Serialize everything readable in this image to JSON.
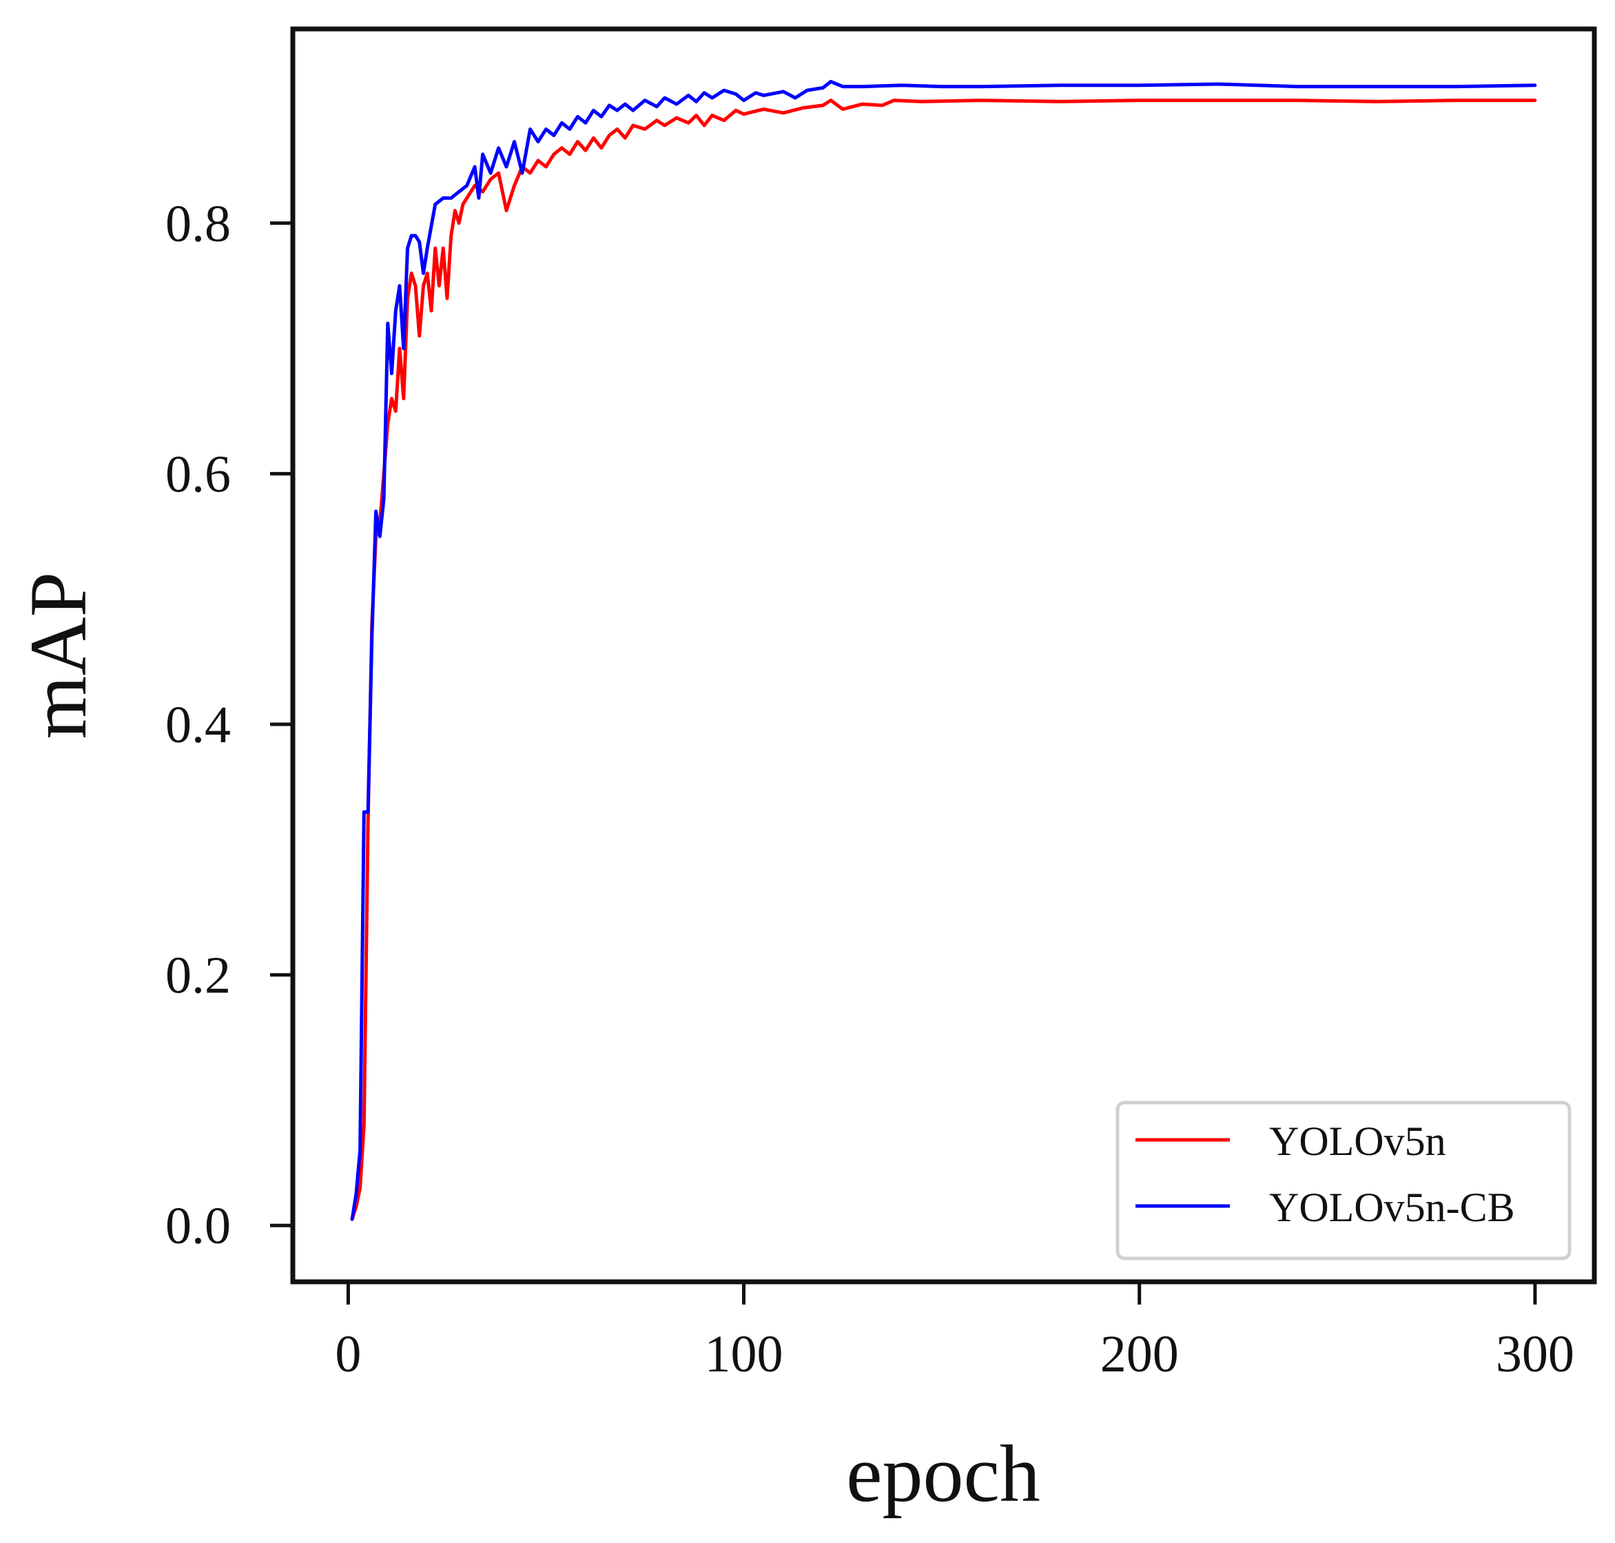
{
  "chart_data": {
    "type": "line",
    "xlabel": "epoch",
    "ylabel": "mAP",
    "xlim": [
      -14,
      315
    ],
    "ylim": [
      -0.045,
      0.955
    ],
    "xticks": [
      0,
      100,
      200,
      300
    ],
    "xtick_labels": [
      "0",
      "100",
      "200",
      "300"
    ],
    "yticks": [
      0.0,
      0.2,
      0.4,
      0.6,
      0.8
    ],
    "ytick_labels": [
      "0.0",
      "0.2",
      "0.4",
      "0.6",
      "0.8"
    ],
    "grid": false,
    "legend_position": "lower-right",
    "series": [
      {
        "name": "YOLOv5n",
        "color": "#ff0000",
        "points": [
          [
            1,
            0.005
          ],
          [
            2,
            0.015
          ],
          [
            3,
            0.03
          ],
          [
            4,
            0.08
          ],
          [
            5,
            0.32
          ],
          [
            6,
            0.48
          ],
          [
            7,
            0.55
          ],
          [
            8,
            0.56
          ],
          [
            9,
            0.6
          ],
          [
            10,
            0.64
          ],
          [
            11,
            0.66
          ],
          [
            12,
            0.65
          ],
          [
            13,
            0.7
          ],
          [
            14,
            0.66
          ],
          [
            15,
            0.74
          ],
          [
            16,
            0.76
          ],
          [
            17,
            0.75
          ],
          [
            18,
            0.71
          ],
          [
            19,
            0.75
          ],
          [
            20,
            0.76
          ],
          [
            21,
            0.73
          ],
          [
            22,
            0.78
          ],
          [
            23,
            0.75
          ],
          [
            24,
            0.78
          ],
          [
            25,
            0.74
          ],
          [
            26,
            0.79
          ],
          [
            27,
            0.81
          ],
          [
            28,
            0.8
          ],
          [
            29,
            0.815
          ],
          [
            30,
            0.82
          ],
          [
            32,
            0.83
          ],
          [
            34,
            0.825
          ],
          [
            36,
            0.835
          ],
          [
            38,
            0.84
          ],
          [
            40,
            0.81
          ],
          [
            42,
            0.83
          ],
          [
            44,
            0.845
          ],
          [
            46,
            0.84
          ],
          [
            48,
            0.85
          ],
          [
            50,
            0.845
          ],
          [
            52,
            0.855
          ],
          [
            54,
            0.86
          ],
          [
            56,
            0.855
          ],
          [
            58,
            0.865
          ],
          [
            60,
            0.858
          ],
          [
            62,
            0.868
          ],
          [
            64,
            0.86
          ],
          [
            66,
            0.87
          ],
          [
            68,
            0.875
          ],
          [
            70,
            0.868
          ],
          [
            72,
            0.878
          ],
          [
            75,
            0.875
          ],
          [
            78,
            0.882
          ],
          [
            80,
            0.878
          ],
          [
            83,
            0.884
          ],
          [
            86,
            0.88
          ],
          [
            88,
            0.886
          ],
          [
            90,
            0.878
          ],
          [
            92,
            0.886
          ],
          [
            95,
            0.882
          ],
          [
            98,
            0.89
          ],
          [
            100,
            0.887
          ],
          [
            105,
            0.891
          ],
          [
            110,
            0.888
          ],
          [
            115,
            0.892
          ],
          [
            120,
            0.894
          ],
          [
            122,
            0.898
          ],
          [
            125,
            0.891
          ],
          [
            130,
            0.895
          ],
          [
            135,
            0.894
          ],
          [
            138,
            0.898
          ],
          [
            145,
            0.897
          ],
          [
            160,
            0.898
          ],
          [
            180,
            0.897
          ],
          [
            200,
            0.898
          ],
          [
            220,
            0.898
          ],
          [
            240,
            0.898
          ],
          [
            260,
            0.897
          ],
          [
            280,
            0.898
          ],
          [
            300,
            0.898
          ]
        ]
      },
      {
        "name": "YOLOv5n-CB",
        "color": "#0000ff",
        "points": [
          [
            1,
            0.005
          ],
          [
            2,
            0.025
          ],
          [
            3,
            0.06
          ],
          [
            4,
            0.33
          ],
          [
            5,
            0.33
          ],
          [
            6,
            0.47
          ],
          [
            7,
            0.57
          ],
          [
            8,
            0.55
          ],
          [
            9,
            0.58
          ],
          [
            10,
            0.72
          ],
          [
            11,
            0.68
          ],
          [
            12,
            0.73
          ],
          [
            13,
            0.75
          ],
          [
            14,
            0.7
          ],
          [
            15,
            0.78
          ],
          [
            16,
            0.79
          ],
          [
            17,
            0.79
          ],
          [
            18,
            0.785
          ],
          [
            19,
            0.76
          ],
          [
            20,
            0.78
          ],
          [
            22,
            0.815
          ],
          [
            24,
            0.82
          ],
          [
            26,
            0.82
          ],
          [
            28,
            0.825
          ],
          [
            30,
            0.83
          ],
          [
            32,
            0.845
          ],
          [
            33,
            0.82
          ],
          [
            34,
            0.855
          ],
          [
            36,
            0.84
          ],
          [
            38,
            0.86
          ],
          [
            40,
            0.845
          ],
          [
            42,
            0.865
          ],
          [
            44,
            0.84
          ],
          [
            46,
            0.875
          ],
          [
            48,
            0.865
          ],
          [
            50,
            0.875
          ],
          [
            52,
            0.87
          ],
          [
            54,
            0.88
          ],
          [
            56,
            0.875
          ],
          [
            58,
            0.885
          ],
          [
            60,
            0.88
          ],
          [
            62,
            0.89
          ],
          [
            64,
            0.885
          ],
          [
            66,
            0.894
          ],
          [
            68,
            0.89
          ],
          [
            70,
            0.895
          ],
          [
            72,
            0.89
          ],
          [
            75,
            0.898
          ],
          [
            78,
            0.893
          ],
          [
            80,
            0.9
          ],
          [
            83,
            0.895
          ],
          [
            86,
            0.902
          ],
          [
            88,
            0.897
          ],
          [
            90,
            0.904
          ],
          [
            92,
            0.9
          ],
          [
            95,
            0.906
          ],
          [
            98,
            0.903
          ],
          [
            100,
            0.898
          ],
          [
            103,
            0.904
          ],
          [
            105,
            0.902
          ],
          [
            110,
            0.905
          ],
          [
            113,
            0.9
          ],
          [
            116,
            0.906
          ],
          [
            120,
            0.908
          ],
          [
            122,
            0.913
          ],
          [
            125,
            0.909
          ],
          [
            130,
            0.909
          ],
          [
            140,
            0.91
          ],
          [
            150,
            0.909
          ],
          [
            160,
            0.909
          ],
          [
            180,
            0.91
          ],
          [
            200,
            0.91
          ],
          [
            220,
            0.911
          ],
          [
            240,
            0.909
          ],
          [
            260,
            0.909
          ],
          [
            280,
            0.909
          ],
          [
            300,
            0.91
          ]
        ]
      }
    ]
  }
}
